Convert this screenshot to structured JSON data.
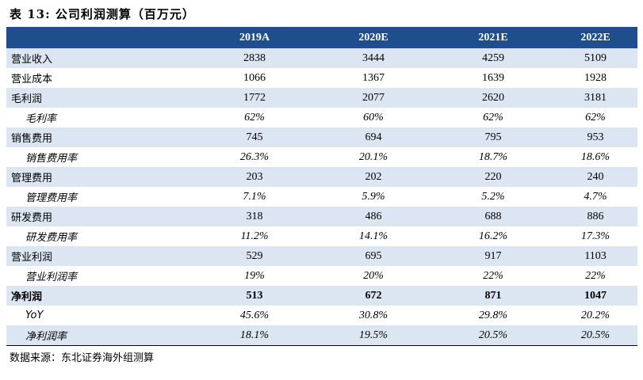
{
  "title": "表 13:  公司利润测算（百万元）",
  "header": [
    "",
    "2019A",
    "2020E",
    "2021E",
    "2022E"
  ],
  "rows": [
    {
      "label": "营业收入",
      "values": [
        "2838",
        "3444",
        "4259",
        "5109"
      ],
      "style": "normal"
    },
    {
      "label": "营业成本",
      "values": [
        "1066",
        "1367",
        "1639",
        "1928"
      ],
      "style": "normal"
    },
    {
      "label": "毛利润",
      "values": [
        "1772",
        "2077",
        "2620",
        "3181"
      ],
      "style": "normal"
    },
    {
      "label": "毛利率",
      "values": [
        "62%",
        "60%",
        "62%",
        "62%"
      ],
      "style": "sub"
    },
    {
      "label": "销售费用",
      "values": [
        "745",
        "694",
        "795",
        "953"
      ],
      "style": "normal"
    },
    {
      "label": "销售费用率",
      "values": [
        "26.3%",
        "20.1%",
        "18.7%",
        "18.6%"
      ],
      "style": "sub"
    },
    {
      "label": "管理费用",
      "values": [
        "203",
        "202",
        "220",
        "240"
      ],
      "style": "normal"
    },
    {
      "label": "管理费用率",
      "values": [
        "7.1%",
        "5.9%",
        "5.2%",
        "4.7%"
      ],
      "style": "sub"
    },
    {
      "label": "研发费用",
      "values": [
        "318",
        "486",
        "688",
        "886"
      ],
      "style": "normal"
    },
    {
      "label": "研发费用率",
      "values": [
        "11.2%",
        "14.1%",
        "16.2%",
        "17.3%"
      ],
      "style": "sub"
    },
    {
      "label": "营业利润",
      "values": [
        "529",
        "695",
        "917",
        "1103"
      ],
      "style": "normal"
    },
    {
      "label": "营业利润率",
      "values": [
        "19%",
        "20%",
        "22%",
        "22%"
      ],
      "style": "sub"
    },
    {
      "label": "净利润",
      "values": [
        "513",
        "672",
        "871",
        "1047"
      ],
      "style": "bold"
    },
    {
      "label": "YoY",
      "values": [
        "45.6%",
        "30.8%",
        "29.8%",
        "20.2%"
      ],
      "style": "sub"
    },
    {
      "label": "净利润率",
      "values": [
        "18.1%",
        "19.5%",
        "20.5%",
        "20.5%"
      ],
      "style": "sub"
    }
  ],
  "source": "数据来源：东北证券海外组测算",
  "colors": {
    "header_bg": "#1f4e8c",
    "header_text": "#ffffff",
    "shade": "#dce6f2"
  }
}
